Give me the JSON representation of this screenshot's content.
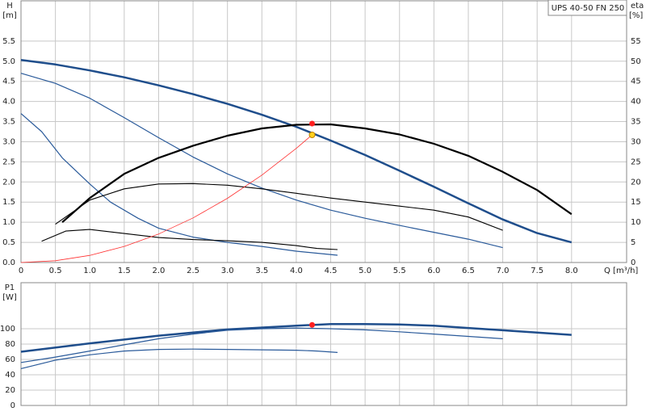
{
  "chart_data": [
    {
      "type": "line",
      "title": "UPS 40-50 FN 250",
      "ylabel": "H",
      "yunit": "[m]",
      "y2label": "eta",
      "y2unit": "[%]",
      "xlabel": "Q [m³/h]",
      "xlim": [
        0,
        8.8
      ],
      "ylim": [
        0,
        6.5
      ],
      "y2lim": [
        0,
        65
      ],
      "grid": true,
      "xticks": [
        0,
        0.5,
        {
          "value": 1,
          "label": "1.0"
        },
        1.5,
        {
          "value": 2,
          "label": "2.0"
        },
        2.5,
        {
          "value": 3,
          "label": "3.0"
        },
        3.5,
        {
          "value": 4,
          "label": "4.0"
        },
        4.5,
        {
          "value": 5,
          "label": "5.0"
        },
        5.5,
        {
          "value": 6,
          "label": "6.0"
        },
        6.5,
        {
          "value": 7,
          "label": "7.0"
        },
        7.5,
        {
          "value": 8,
          "label": "8.0"
        }
      ],
      "yticks": [
        {
          "value": 0,
          "label": "0.0"
        },
        0.5,
        {
          "value": 1,
          "label": "1.0"
        },
        1.5,
        {
          "value": 2,
          "label": "2.0"
        },
        2.5,
        {
          "value": 3,
          "label": "3.0"
        },
        3.5,
        {
          "value": 4,
          "label": "4.0"
        },
        4.5,
        {
          "value": 5,
          "label": "5.0"
        },
        5.5
      ],
      "y2ticks": [
        0,
        5,
        10,
        15,
        20,
        25,
        30,
        35,
        40,
        45,
        50,
        55
      ],
      "series": [
        {
          "color": "#1f4e8c",
          "linewidth": 2.5,
          "x": [
            0,
            0.5,
            1,
            1.5,
            2,
            2.5,
            3,
            3.5,
            4,
            4.5,
            5,
            5.5,
            6,
            6.5,
            7,
            7.5,
            8
          ],
          "values": [
            5.03,
            4.92,
            4.77,
            4.6,
            4.4,
            4.18,
            3.94,
            3.67,
            3.37,
            3.03,
            2.67,
            2.28,
            1.88,
            1.47,
            1.07,
            0.73,
            0.5
          ]
        },
        {
          "color": "#2a5a9a",
          "linewidth": 1.2,
          "x": [
            0,
            0.5,
            1,
            1.5,
            2,
            2.5,
            3,
            3.5,
            4,
            4.5,
            5,
            5.5,
            6,
            6.5,
            7
          ],
          "values": [
            4.7,
            4.45,
            4.08,
            3.6,
            3.1,
            2.62,
            2.2,
            1.85,
            1.55,
            1.3,
            1.1,
            0.92,
            0.75,
            0.58,
            0.37
          ]
        },
        {
          "color": "#2a5a9a",
          "linewidth": 1.2,
          "x": [
            0,
            0.3,
            0.6,
            1,
            1.3,
            1.7,
            2,
            2.5,
            3,
            3.5,
            4,
            4.6
          ],
          "values": [
            3.7,
            3.25,
            2.6,
            1.95,
            1.5,
            1.1,
            0.85,
            0.63,
            0.5,
            0.4,
            0.28,
            0.18
          ]
        },
        {
          "color": "#000000",
          "linewidth": 2.2,
          "axis": "y2",
          "x": [
            0.6,
            1,
            1.5,
            2,
            2.5,
            3,
            3.5,
            4,
            4.5,
            5,
            5.5,
            6,
            6.5,
            7,
            7.5,
            8
          ],
          "values": [
            10,
            16,
            22,
            26,
            29,
            31.5,
            33.3,
            34.2,
            34.3,
            33.3,
            31.8,
            29.5,
            26.5,
            22.5,
            18,
            12
          ]
        },
        {
          "color": "#000000",
          "linewidth": 1.1,
          "axis": "y2",
          "x": [
            0.5,
            1,
            1.5,
            2,
            2.5,
            3,
            3.5,
            4,
            4.5,
            5,
            5.5,
            6,
            6.5,
            7
          ],
          "values": [
            9.5,
            15.5,
            18.3,
            19.5,
            19.6,
            19.2,
            18.3,
            17.2,
            16,
            15,
            14,
            13,
            11.3,
            8
          ]
        },
        {
          "color": "#000000",
          "linewidth": 1.1,
          "axis": "y2",
          "x": [
            0.3,
            0.65,
            1,
            1.5,
            2,
            2.5,
            3,
            3.5,
            4,
            4.3,
            4.6
          ],
          "values": [
            5.3,
            7.8,
            8.2,
            7.2,
            6.2,
            5.7,
            5.4,
            5,
            4.2,
            3.5,
            3.2
          ]
        },
        {
          "color": "#ff3030",
          "linewidth": 0.8,
          "x": [
            0,
            0.5,
            1,
            1.5,
            2,
            2.5,
            3,
            3.5,
            4,
            4.23
          ],
          "values": [
            0,
            0.044,
            0.177,
            0.399,
            0.709,
            1.107,
            1.595,
            2.17,
            2.835,
            3.17
          ]
        },
        {
          "color": "#ff2020",
          "marker": true,
          "axis": "y2",
          "x": [
            4.23
          ],
          "values": [
            34.5
          ]
        },
        {
          "color": "#ffd21f",
          "marker": true,
          "x": [
            4.23
          ],
          "values": [
            3.17
          ]
        }
      ]
    },
    {
      "type": "line",
      "ylabel": "P1",
      "yunit": "[W]",
      "xlim": [
        0,
        8.8
      ],
      "ylim": [
        0,
        160
      ],
      "grid": true,
      "xticks": [
        0,
        0.5,
        1,
        1.5,
        2,
        2.5,
        3,
        3.5,
        4,
        4.5,
        5,
        5.5,
        6,
        6.5,
        7,
        7.5,
        8
      ],
      "yticks": [
        0,
        20,
        40,
        60,
        80,
        100
      ],
      "series": [
        {
          "color": "#1f4e8c",
          "linewidth": 2.5,
          "x": [
            0,
            1,
            2,
            3,
            4,
            4.5,
            5,
            5.5,
            6,
            6.5,
            7,
            7.5,
            8
          ],
          "values": [
            70,
            81,
            91,
            99,
            104,
            106,
            106,
            105.5,
            104,
            101,
            98,
            95,
            92
          ]
        },
        {
          "color": "#2a5a9a",
          "linewidth": 1.2,
          "x": [
            0,
            0.5,
            1,
            1.5,
            2,
            2.5,
            3,
            3.5,
            4,
            4.5,
            5,
            5.5,
            6,
            6.5,
            7
          ],
          "values": [
            56,
            63,
            71,
            79,
            87,
            93,
            98,
            100,
            101,
            100,
            98.5,
            96,
            93,
            90,
            87
          ]
        },
        {
          "color": "#2a5a9a",
          "linewidth": 1.2,
          "x": [
            0,
            0.5,
            1,
            1.5,
            2,
            2.5,
            3,
            3.5,
            4,
            4.3,
            4.6
          ],
          "values": [
            48,
            59,
            66,
            71,
            73,
            73.5,
            73,
            72.5,
            72,
            71,
            69
          ]
        },
        {
          "color": "#ff2020",
          "marker": true,
          "x": [
            4.23
          ],
          "values": [
            105
          ]
        }
      ]
    }
  ]
}
